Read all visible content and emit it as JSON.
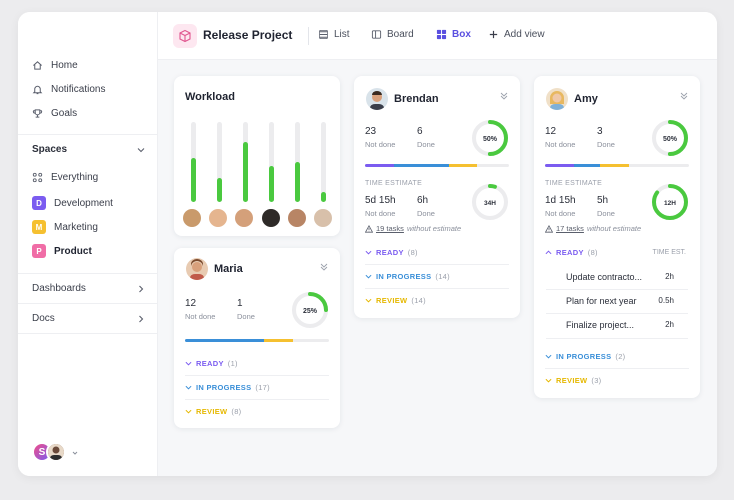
{
  "header": {
    "project_title": "Release Project",
    "views": [
      {
        "label": "List",
        "icon": "list-icon"
      },
      {
        "label": "Board",
        "icon": "board-icon"
      },
      {
        "label": "Box",
        "icon": "box-icon",
        "active": true
      },
      {
        "label": "Add view",
        "icon": "plus-icon"
      }
    ]
  },
  "sidebar": {
    "nav": [
      {
        "label": "Home",
        "icon": "home-icon"
      },
      {
        "label": "Notifications",
        "icon": "bell-icon"
      },
      {
        "label": "Goals",
        "icon": "trophy-icon"
      }
    ],
    "spaces_title": "Spaces",
    "everything_label": "Everything",
    "spaces": [
      {
        "badge": "D",
        "label": "Development",
        "color": "#7b5cf0"
      },
      {
        "badge": "M",
        "label": "Marketing",
        "color": "#f5c030"
      },
      {
        "badge": "P",
        "label": "Product",
        "color": "#f06da6",
        "active": true
      }
    ],
    "dashboards_label": "Dashboards",
    "docs_label": "Docs",
    "user_initial": "S"
  },
  "workload": {
    "title": "Workload",
    "bars": [
      0.55,
      0.3,
      0.75,
      0.45,
      0.5,
      0.12
    ]
  },
  "maria": {
    "name": "Maria",
    "not_done": "12",
    "not_done_label": "Not done",
    "done": "1",
    "done_label": "Done",
    "percent": "25%",
    "percent_value": 25,
    "groups": [
      {
        "label": "READY",
        "count": "(1)",
        "color": "#7b5cf0"
      },
      {
        "label": "IN PROGRESS",
        "count": "(17)",
        "color": "#3a8fd8"
      },
      {
        "label": "REVIEW",
        "count": "(8)",
        "color": "#e6b800"
      }
    ]
  },
  "brendan": {
    "name": "Brendan",
    "not_done": "23",
    "not_done_label": "Not done",
    "done": "6",
    "done_label": "Done",
    "percent": "50%",
    "percent_value": 50,
    "time_estimate_label": "TIME ESTIMATE",
    "te_not_done": "5d 15h",
    "te_not_done_label": "Not done",
    "te_done": "6h",
    "te_done_label": "Done",
    "te_ring": "34H",
    "te_ring_value": 5,
    "warn_link": "19 tasks",
    "warn_rest": "without estimate",
    "groups": [
      {
        "label": "READY",
        "count": "(8)",
        "color": "#7b5cf0"
      },
      {
        "label": "IN PROGRESS",
        "count": "(14)",
        "color": "#3a8fd8"
      },
      {
        "label": "REVIEW",
        "count": "(14)",
        "color": "#e6b800"
      }
    ]
  },
  "amy": {
    "name": "Amy",
    "not_done": "12",
    "not_done_label": "Not done",
    "done": "3",
    "done_label": "Done",
    "percent": "50%",
    "percent_value": 50,
    "time_estimate_label": "TIME ESTIMATE",
    "te_not_done": "1d 15h",
    "te_not_done_label": "Not done",
    "te_done": "5h",
    "te_done_label": "Done",
    "te_ring": "12H",
    "te_ring_value": 85,
    "warn_link": "17 tasks",
    "warn_rest": "without estimate",
    "ready_label": "READY",
    "ready_count": "(8)",
    "te_head": "TIME EST.",
    "tasks": [
      {
        "name": "Update contracto...",
        "estimate": "2h"
      },
      {
        "name": "Plan for next year",
        "estimate": "0.5h"
      },
      {
        "name": "Finalize project...",
        "estimate": "2h"
      }
    ],
    "groups": [
      {
        "label": "IN PROGRESS",
        "count": "(2)",
        "color": "#3a8fd8"
      },
      {
        "label": "REVIEW",
        "count": "(3)",
        "color": "#e6b800"
      }
    ]
  },
  "colors": {
    "accent": "#5a4fe0",
    "green": "#4ac93f",
    "purple": "#7b5cf0",
    "blue": "#3a8fd8",
    "yellow": "#e6b800"
  }
}
